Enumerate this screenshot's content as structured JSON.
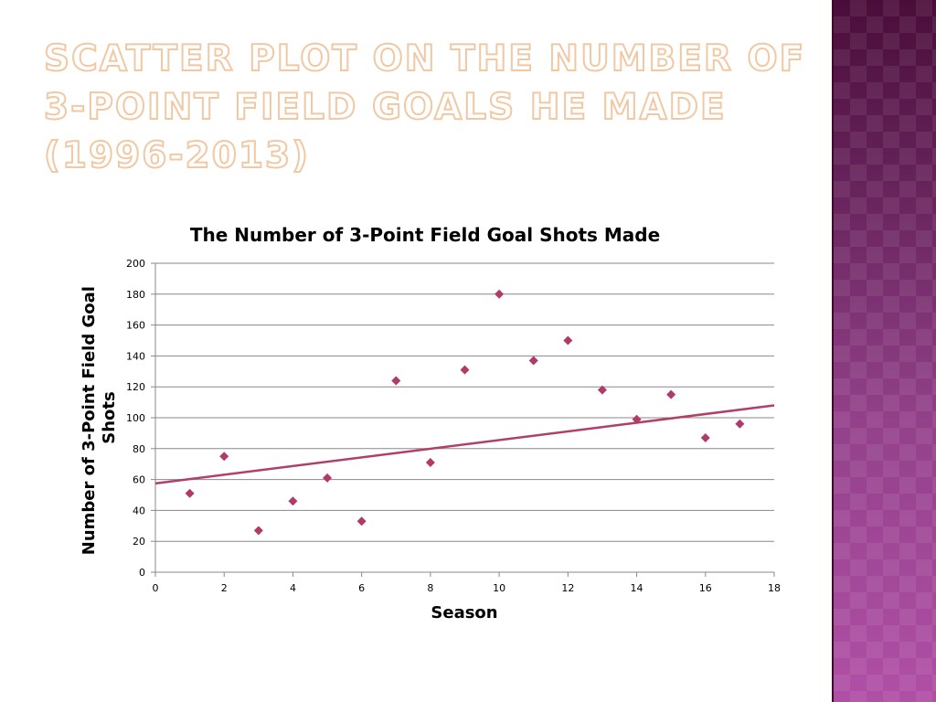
{
  "slide": {
    "title": "Scatter Plot on the Number of 3-Point Field Goals He Made (1996-2013)"
  },
  "colors": {
    "title_fill": "#ffffff",
    "title_outline": "#f0c9a4",
    "marker": "#b03a6a",
    "trendline": "#b0406a",
    "gridline": "#888888",
    "side_band_top": "#4a0d3a",
    "side_band_bottom": "#b04fa6"
  },
  "chart_data": {
    "type": "scatter",
    "title": "The Number of 3-Point Field Goal Shots Made",
    "xlabel": "Season",
    "ylabel_lines": [
      "Number of 3-Point Field Goal",
      "Shots"
    ],
    "xlim": [
      0,
      18
    ],
    "ylim": [
      0,
      200
    ],
    "x_ticks": [
      0,
      2,
      4,
      6,
      8,
      10,
      12,
      14,
      16,
      18
    ],
    "y_ticks": [
      0,
      20,
      40,
      60,
      80,
      100,
      120,
      140,
      160,
      180,
      200
    ],
    "grid": "horizontal",
    "legend": "none",
    "marker": "diamond",
    "points": [
      {
        "x": 1,
        "y": 51
      },
      {
        "x": 2,
        "y": 75
      },
      {
        "x": 3,
        "y": 27
      },
      {
        "x": 4,
        "y": 46
      },
      {
        "x": 5,
        "y": 61
      },
      {
        "x": 6,
        "y": 33
      },
      {
        "x": 7,
        "y": 124
      },
      {
        "x": 8,
        "y": 71
      },
      {
        "x": 9,
        "y": 131
      },
      {
        "x": 10,
        "y": 180
      },
      {
        "x": 11,
        "y": 137
      },
      {
        "x": 12,
        "y": 150
      },
      {
        "x": 13,
        "y": 118
      },
      {
        "x": 14,
        "y": 99
      },
      {
        "x": 15,
        "y": 115
      },
      {
        "x": 16,
        "y": 87
      },
      {
        "x": 17,
        "y": 96
      }
    ],
    "trendline": {
      "type": "linear",
      "x": [
        0,
        18
      ],
      "y": [
        57.5,
        108
      ]
    }
  }
}
